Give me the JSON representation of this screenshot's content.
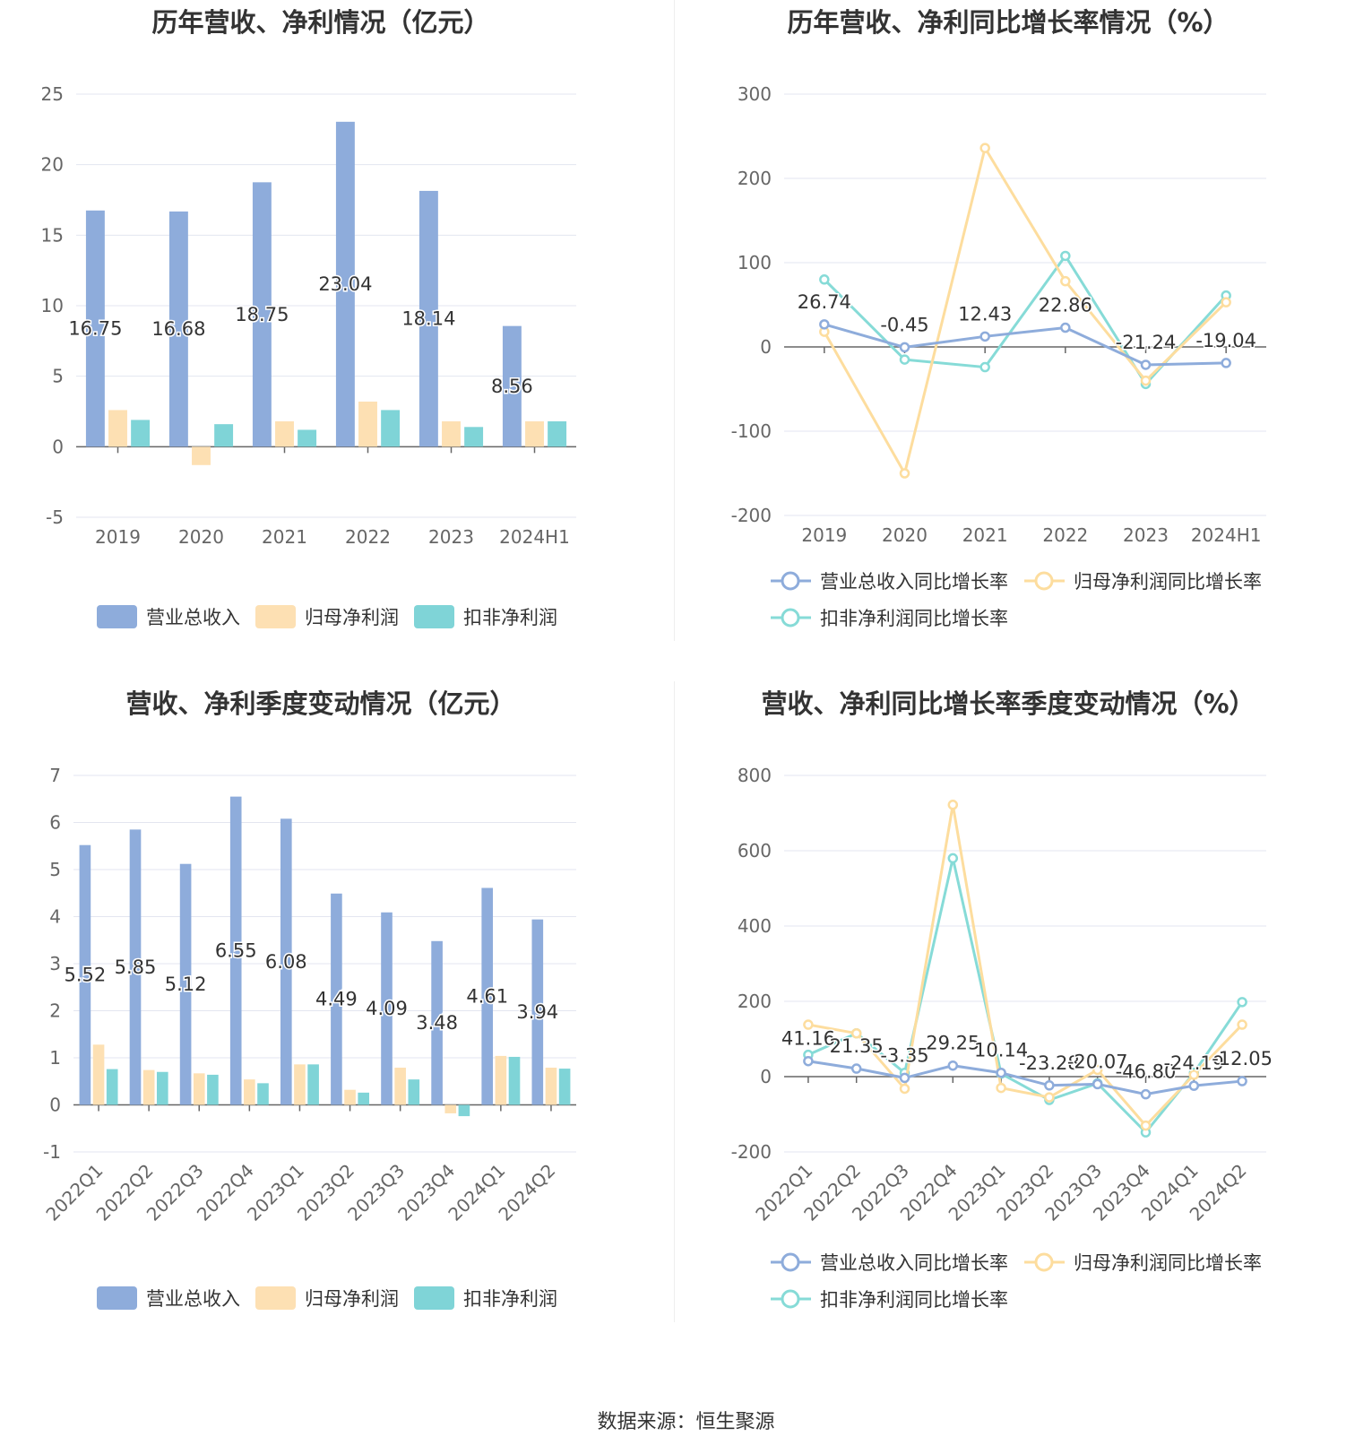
{
  "footer": {
    "source": "数据来源：恒生聚源"
  },
  "colors": {
    "revenue": "#8eacdb",
    "net_profit": "#fde0b3",
    "deducted_profit": "#7fd4d7",
    "rev_line": "#8eacdb",
    "np_line": "#fddd9e",
    "dp_line": "#86dbd7"
  },
  "chart_data": [
    {
      "type": "bar",
      "title": "历年营收、净利情况（亿元）",
      "categories": [
        "2019",
        "2020",
        "2021",
        "2022",
        "2023",
        "2024H1"
      ],
      "ylim": [
        -5,
        25
      ],
      "yticks": [
        "-5",
        "0",
        "5",
        "10",
        "15",
        "20",
        "25"
      ],
      "grid": true,
      "legend_position": "bottom",
      "series": [
        {
          "name": "营业总收入",
          "values": [
            16.75,
            16.68,
            18.75,
            23.04,
            18.14,
            8.56
          ],
          "labels": [
            "16.75",
            "16.68",
            "18.75",
            "23.04",
            "18.14",
            "8.56"
          ]
        },
        {
          "name": "归母净利润",
          "values": [
            2.6,
            -1.3,
            1.8,
            3.2,
            1.8,
            1.8
          ]
        },
        {
          "name": "扣非净利润",
          "values": [
            1.9,
            1.6,
            1.2,
            2.6,
            1.4,
            1.8
          ]
        }
      ]
    },
    {
      "type": "line",
      "title": "历年营收、净利同比增长率情况（%）",
      "categories": [
        "2019",
        "2020",
        "2021",
        "2022",
        "2023",
        "2024H1"
      ],
      "ylim": [
        -200,
        300
      ],
      "yticks": [
        "-200",
        "-100",
        "0",
        "100",
        "200",
        "300"
      ],
      "grid": true,
      "legend_position": "bottom",
      "series": [
        {
          "name": "营业总收入同比增长率",
          "values": [
            26.74,
            -0.45,
            12.43,
            22.86,
            -21.24,
            -19.04
          ],
          "labels": [
            "26.74",
            "-0.45",
            "12.43",
            "22.86",
            "-21.24",
            "-19.04"
          ]
        },
        {
          "name": "归母净利润同比增长率",
          "values": [
            18,
            -150,
            236,
            78,
            -40,
            53
          ]
        },
        {
          "name": "扣非净利润同比增长率",
          "values": [
            80,
            -15,
            -24,
            108,
            -44,
            61
          ]
        }
      ]
    },
    {
      "type": "bar",
      "title": "营收、净利季度变动情况（亿元）",
      "categories": [
        "2022Q1",
        "2022Q2",
        "2022Q3",
        "2022Q4",
        "2023Q1",
        "2023Q2",
        "2023Q3",
        "2023Q4",
        "2024Q1",
        "2024Q2"
      ],
      "ylim": [
        -1,
        7
      ],
      "yticks": [
        "-1",
        "0",
        "1",
        "2",
        "3",
        "4",
        "5",
        "6",
        "7"
      ],
      "grid": true,
      "legend_position": "bottom",
      "series": [
        {
          "name": "营业总收入",
          "values": [
            5.52,
            5.85,
            5.12,
            6.55,
            6.08,
            4.49,
            4.09,
            3.48,
            4.61,
            3.94
          ],
          "labels": [
            "5.52",
            "5.85",
            "5.12",
            "6.55",
            "6.08",
            "4.49",
            "4.09",
            "3.48",
            "4.61",
            "3.94"
          ]
        },
        {
          "name": "归母净利润",
          "values": [
            1.28,
            0.74,
            0.67,
            0.54,
            0.86,
            0.32,
            0.79,
            -0.18,
            1.04,
            0.79
          ]
        },
        {
          "name": "扣非净利润",
          "values": [
            0.76,
            0.7,
            0.64,
            0.46,
            0.86,
            0.26,
            0.54,
            -0.24,
            1.02,
            0.77
          ]
        }
      ]
    },
    {
      "type": "line",
      "title": "营收、净利同比增长率季度变动情况（%）",
      "categories": [
        "2022Q1",
        "2022Q2",
        "2022Q3",
        "2022Q4",
        "2023Q1",
        "2023Q2",
        "2023Q3",
        "2023Q4",
        "2024Q1",
        "2024Q2"
      ],
      "ylim": [
        -200,
        800
      ],
      "yticks": [
        "-200",
        "0",
        "200",
        "400",
        "600",
        "800"
      ],
      "grid": true,
      "legend_position": "bottom",
      "series": [
        {
          "name": "营业总收入同比增长率",
          "values": [
            41.16,
            21.35,
            -3.35,
            29.25,
            10.14,
            -23.28,
            -20.07,
            -46.8,
            -24.19,
            -12.05
          ],
          "labels": [
            "41.16",
            "21.35",
            "-3.35",
            "29.25",
            "10.14",
            "-23.28",
            "-20.07",
            "-46.80",
            "-24.19",
            "-12.05"
          ]
        },
        {
          "name": "归母净利润同比增长率",
          "values": [
            138,
            115,
            -32,
            722,
            -30,
            -55,
            18,
            -130,
            5,
            138
          ]
        },
        {
          "name": "扣非净利润同比增长率",
          "values": [
            58,
            115,
            10,
            580,
            8,
            -62,
            -18,
            -148,
            10,
            198
          ]
        }
      ]
    }
  ]
}
